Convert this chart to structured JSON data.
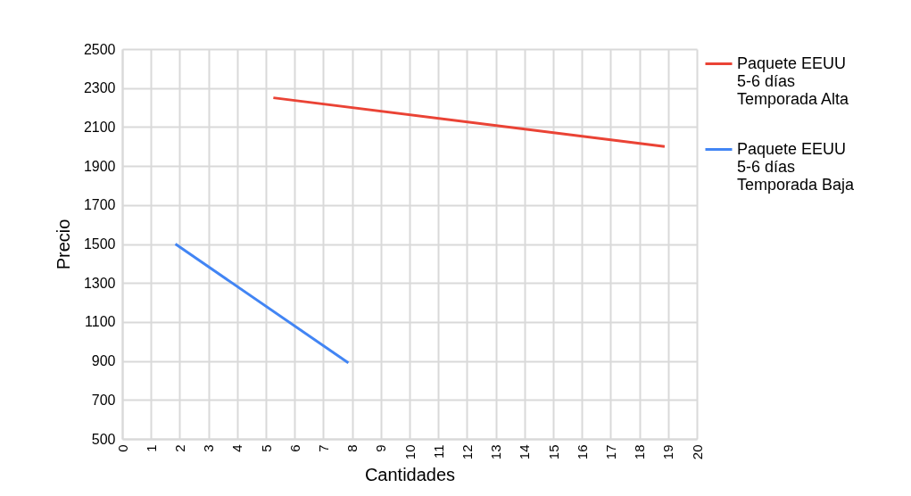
{
  "chart_data": {
    "type": "line",
    "xlabel": "Cantidades",
    "ylabel": "Precio",
    "xlim": [
      0,
      20
    ],
    "xticks": [
      0,
      1,
      2,
      3,
      4,
      5,
      6,
      7,
      8,
      9,
      10,
      11,
      12,
      13,
      14,
      15,
      16,
      17,
      18,
      19,
      20
    ],
    "ylim": [
      500,
      2500
    ],
    "yticks": [
      500,
      700,
      900,
      1100,
      1300,
      1500,
      1700,
      1900,
      2100,
      2300,
      2500
    ],
    "grid": true,
    "legend": "right",
    "marker": "none",
    "line_style": "solid",
    "series": [
      {
        "name": "Paquete EEUU 5-6 días Temporada Alta",
        "color": "#ea4335",
        "x": [
          5.26,
          18.88
        ],
        "values": [
          2250,
          2000
        ]
      },
      {
        "name": "Paquete EEUU 5-6 días Temporada Baja",
        "color": "#4285f4",
        "x": [
          1.85,
          7.87
        ],
        "values": [
          1500,
          890
        ]
      }
    ]
  }
}
